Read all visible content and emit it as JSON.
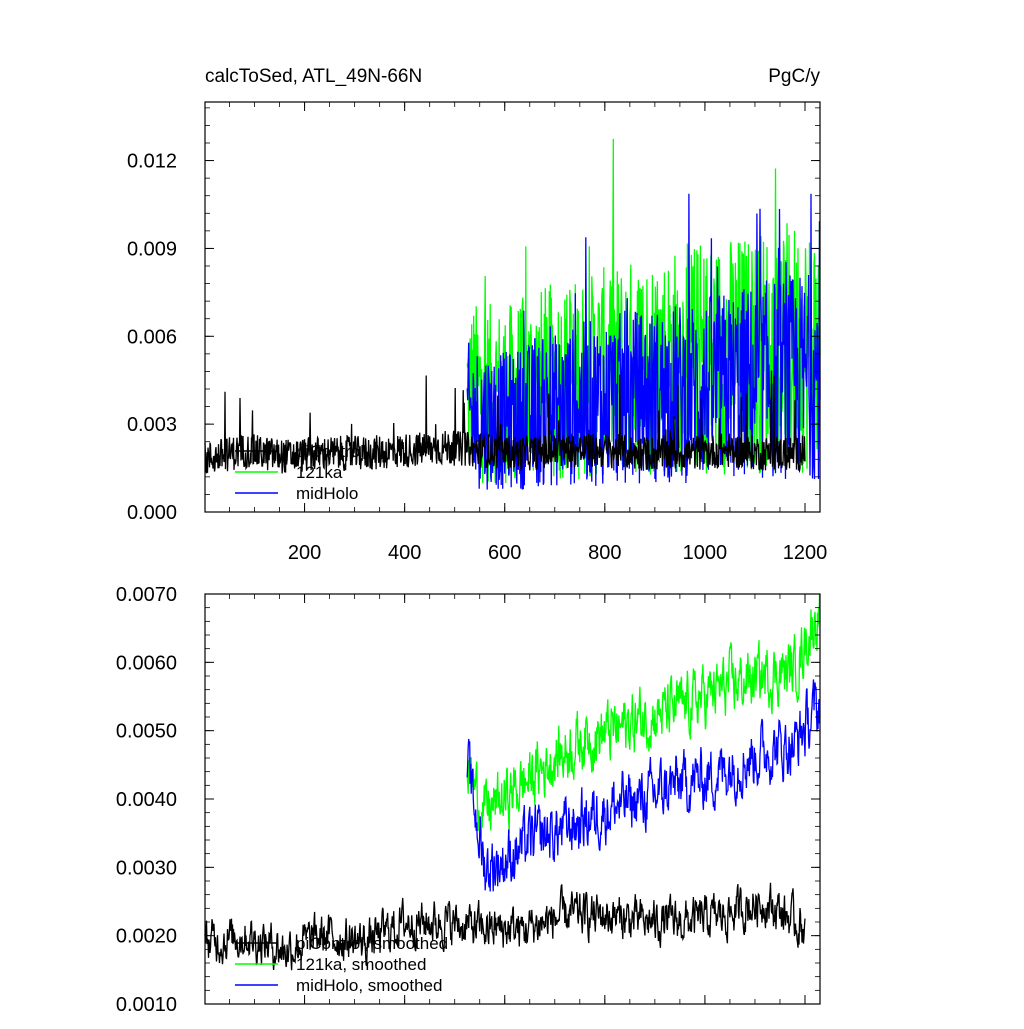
{
  "chart_data": [
    {
      "type": "line",
      "title": "calcToSed, ATL_49N-66N",
      "units": "PgC/y",
      "xlim": [
        1,
        1230
      ],
      "ylim": [
        0,
        0.014
      ],
      "x_ticks": [
        200,
        400,
        600,
        800,
        1000,
        1200
      ],
      "x_tick_labels": [
        "200",
        "400",
        "600",
        "800",
        "1000",
        "1200"
      ],
      "y_ticks": [
        0,
        0.003,
        0.006,
        0.009,
        0.012
      ],
      "y_tick_labels": [
        "0.000",
        "0.003",
        "0.006",
        "0.009",
        "0.012"
      ],
      "legend_position": "bottom-left",
      "series": [
        {
          "name": "piControl",
          "color": "#000000",
          "x_range": [
            1,
            1200
          ],
          "values_sampled": [
            0.0018,
            0.0021,
            0.0019,
            0.002,
            0.002,
            0.0021,
            0.0022,
            0.0021,
            0.002,
            0.0021,
            0.0021,
            0.002,
            0.002,
            0.0021,
            0.002,
            0.002
          ],
          "sample_x": [
            1,
            80,
            160,
            240,
            320,
            400,
            480,
            560,
            640,
            720,
            800,
            880,
            960,
            1040,
            1120,
            1200
          ]
        },
        {
          "name": "121ka",
          "color": "#00ff00",
          "x_range": [
            525,
            1230
          ],
          "values_sampled": [
            0.0041,
            0.004,
            0.0044,
            0.0046,
            0.0049,
            0.0051,
            0.0053,
            0.0054,
            0.0056,
            0.0057
          ],
          "sample_x": [
            525,
            600,
            680,
            760,
            840,
            920,
            1000,
            1080,
            1160,
            1230
          ]
        },
        {
          "name": "midHolo",
          "color": "#0000ff",
          "x_range": [
            525,
            1230
          ],
          "values_sampled": [
            0.0033,
            0.0031,
            0.0034,
            0.0037,
            0.0039,
            0.004,
            0.0042,
            0.0044,
            0.0046,
            0.0047
          ],
          "sample_x": [
            525,
            600,
            680,
            760,
            840,
            920,
            1000,
            1080,
            1160,
            1230
          ]
        }
      ]
    },
    {
      "type": "line",
      "title": "",
      "xlim": [
        1,
        1230
      ],
      "ylim": [
        0.001,
        0.007
      ],
      "x_ticks": [
        200,
        400,
        600,
        800,
        1000,
        1200
      ],
      "y_ticks": [
        0.001,
        0.002,
        0.003,
        0.004,
        0.005,
        0.006,
        0.007
      ],
      "y_tick_labels": [
        "0.0010",
        "0.0020",
        "0.0030",
        "0.0040",
        "0.0050",
        "0.0060",
        "0.0070"
      ],
      "legend_position": "bottom-left",
      "series": [
        {
          "name": "piControl, smoothed",
          "color": "#000000",
          "sample_x": [
            1,
            80,
            160,
            240,
            320,
            400,
            480,
            560,
            640,
            720,
            800,
            880,
            960,
            1040,
            1120,
            1200
          ],
          "values_sampled": [
            0.0019,
            0.002,
            0.0018,
            0.002,
            0.0019,
            0.0022,
            0.0022,
            0.0021,
            0.0021,
            0.0023,
            0.0023,
            0.0022,
            0.0022,
            0.0023,
            0.0025,
            0.0021
          ]
        },
        {
          "name": "121ka, smoothed",
          "color": "#00ff00",
          "sample_x": [
            525,
            560,
            600,
            650,
            700,
            760,
            820,
            880,
            940,
            1000,
            1060,
            1120,
            1180,
            1230
          ],
          "values_sampled": [
            0.0045,
            0.0038,
            0.004,
            0.0043,
            0.0046,
            0.0049,
            0.005,
            0.0052,
            0.0053,
            0.0055,
            0.0057,
            0.0058,
            0.0059,
            0.0068
          ]
        },
        {
          "name": "midHolo, smoothed",
          "color": "#0000ff",
          "sample_x": [
            525,
            560,
            600,
            650,
            700,
            760,
            820,
            880,
            940,
            1000,
            1060,
            1120,
            1180,
            1230
          ],
          "values_sampled": [
            0.0045,
            0.003,
            0.0031,
            0.0034,
            0.0035,
            0.0037,
            0.0039,
            0.004,
            0.0042,
            0.0043,
            0.0045,
            0.0047,
            0.0048,
            0.0054
          ]
        }
      ]
    }
  ]
}
